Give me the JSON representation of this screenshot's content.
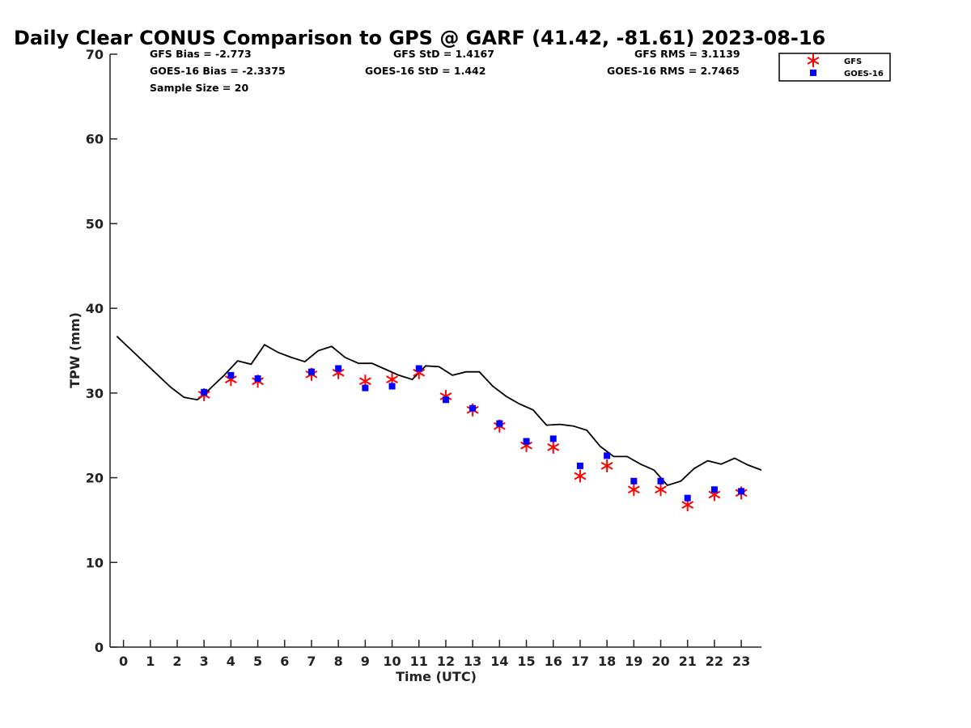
{
  "chart_data": {
    "type": "scatter",
    "title": "Daily Clear CONUS Comparison to GPS @ GARF (41.42, -81.61) 2023-08-16",
    "xlabel": "Time (UTC)",
    "ylabel": "TPW (mm)",
    "xlim": [
      -0.5,
      23.75
    ],
    "ylim": [
      0,
      70
    ],
    "x_ticks": [
      0,
      1,
      2,
      3,
      4,
      5,
      6,
      7,
      8,
      9,
      10,
      11,
      12,
      13,
      14,
      15,
      16,
      17,
      18,
      19,
      20,
      21,
      22,
      23
    ],
    "y_ticks": [
      0,
      10,
      20,
      30,
      40,
      50,
      60,
      70
    ],
    "grid": false,
    "legend": {
      "placement": "top-right",
      "entries": [
        "GFS",
        "GOES-16"
      ]
    },
    "stats": {
      "gfs_bias": "GFS Bias = -2.773",
      "gfs_std": "GFS StD = 1.4167",
      "gfs_rms": "GFS RMS = 3.1139",
      "goes_bias": "GOES-16 Bias = -2.3375",
      "goes_std": "GOES-16 StD = 1.442",
      "goes_rms": "GOES-16 RMS = 2.7465",
      "sample_size": "Sample Size = 20"
    },
    "series": [
      {
        "name": "GFS",
        "style": "asterisk",
        "color": "#ff0000",
        "x": [
          3,
          4,
          5,
          7,
          8,
          9,
          10,
          11,
          12,
          13,
          14,
          15,
          16,
          17,
          18,
          19,
          20,
          21,
          22,
          23
        ],
        "y": [
          29.8,
          31.6,
          31.4,
          32.2,
          32.4,
          31.4,
          31.6,
          32.4,
          29.6,
          28.0,
          26.1,
          23.8,
          23.6,
          20.2,
          21.4,
          18.6,
          18.6,
          16.8,
          18.0,
          18.2
        ]
      },
      {
        "name": "GOES-16",
        "style": "square",
        "color": "#0000ff",
        "x": [
          3,
          4,
          5,
          7,
          8,
          9,
          10,
          11,
          12,
          13,
          14,
          15,
          16,
          17,
          18,
          19,
          20,
          21,
          22,
          23
        ],
        "y": [
          30.1,
          32.1,
          31.7,
          32.5,
          32.9,
          30.6,
          30.8,
          32.9,
          29.2,
          28.2,
          26.4,
          24.3,
          24.6,
          21.4,
          22.6,
          19.6,
          19.6,
          17.6,
          18.6,
          18.4
        ]
      },
      {
        "style": "line",
        "color": "#000000",
        "x": [
          -0.25,
          0.25,
          0.75,
          1.25,
          1.75,
          2.25,
          2.75,
          3.0,
          3.25,
          3.75,
          4.25,
          4.75,
          5.25,
          5.75,
          6.25,
          6.75,
          7.25,
          7.75,
          8.25,
          8.75,
          9.25,
          9.75,
          10.25,
          10.75,
          11.25,
          11.75,
          12.25,
          12.75,
          13.25,
          13.75,
          14.25,
          14.75,
          15.25,
          15.75,
          16.25,
          16.75,
          17.25,
          17.75,
          18.25,
          18.75,
          19.25,
          19.75,
          20.25,
          20.75,
          21.25,
          21.75,
          22.25,
          22.75,
          23.25,
          23.75
        ],
        "y": [
          36.7,
          35.2,
          33.7,
          32.2,
          30.7,
          29.5,
          29.2,
          29.8,
          30.6,
          32.1,
          33.8,
          33.4,
          35.7,
          34.8,
          34.2,
          33.7,
          35.0,
          35.5,
          34.2,
          33.5,
          33.5,
          32.8,
          32.1,
          31.6,
          33.2,
          33.1,
          32.1,
          32.5,
          32.5,
          30.8,
          29.6,
          28.7,
          28.0,
          26.2,
          26.3,
          26.1,
          25.6,
          23.7,
          22.5,
          22.5,
          21.6,
          20.9,
          19.1,
          19.6,
          21.1,
          22.0,
          21.6,
          22.3,
          21.5,
          20.9
        ]
      }
    ]
  }
}
